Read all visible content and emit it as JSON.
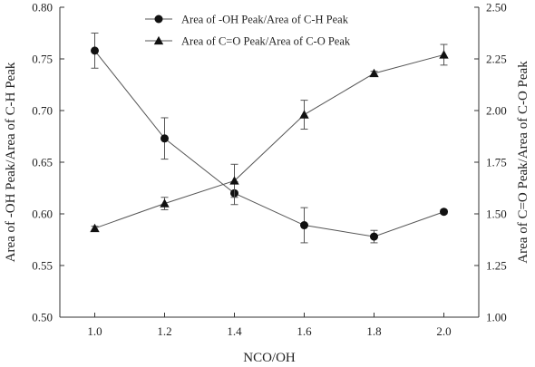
{
  "chart_data": {
    "type": "line",
    "xlabel": "NCO/OH",
    "ylabel_left": "Area of -OH Peak/Area of C-H Peak",
    "ylabel_right": "Area of C=O Peak/Area of C-O Peak",
    "x": [
      1.0,
      1.2,
      1.4,
      1.6,
      1.8,
      2.0
    ],
    "x_ticks": [
      "1.0",
      "1.2",
      "1.4",
      "1.6",
      "1.8",
      "2.0"
    ],
    "xlim": [
      0.9,
      2.1
    ],
    "ylim_left": [
      0.5,
      0.8
    ],
    "ylim_right": [
      1.0,
      2.5
    ],
    "y_ticks_left": [
      "0.50",
      "0.55",
      "0.60",
      "0.65",
      "0.70",
      "0.75",
      "0.80"
    ],
    "y_ticks_right": [
      "1.00",
      "1.25",
      "1.50",
      "1.75",
      "2.00",
      "2.25",
      "2.50"
    ],
    "series": [
      {
        "name": "Area of -OH Peak/Area of C-H Peak",
        "axis": "left",
        "marker": "circle",
        "values": [
          0.758,
          0.673,
          0.62,
          0.589,
          0.578,
          0.602
        ],
        "errors": [
          0.017,
          0.02,
          0.011,
          0.017,
          0.006,
          0.002
        ]
      },
      {
        "name": "Area of C=O Peak/Area of C-O Peak",
        "axis": "right",
        "marker": "triangle",
        "values": [
          1.43,
          1.55,
          1.66,
          1.98,
          2.18,
          2.27
        ],
        "errors": [
          0.01,
          0.03,
          0.08,
          0.07,
          0.01,
          0.05
        ]
      }
    ],
    "grid": false,
    "legend": "top-center"
  }
}
